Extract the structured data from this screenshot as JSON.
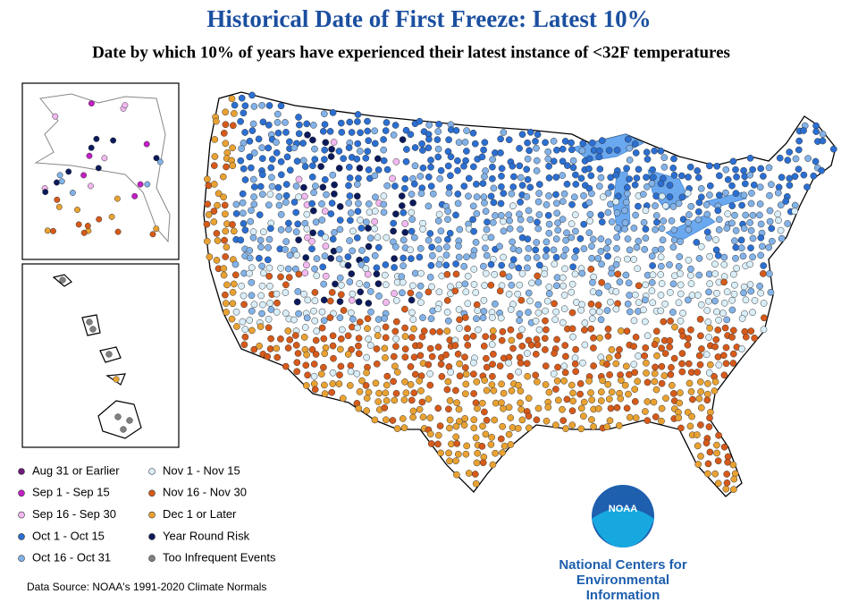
{
  "header": {
    "title": "Historical Date of First Freeze: Latest 10%",
    "subtitle": "Date by which 10% of years have experienced their latest instance of <32F temperatures"
  },
  "legend": {
    "items": [
      {
        "label": "Aug 31 or Earlier",
        "color": "#6e1a78"
      },
      {
        "label": "Sep 1 - Sep 15",
        "color": "#c21fc4"
      },
      {
        "label": "Sep 16 - Sep 30",
        "color": "#f2b8f0"
      },
      {
        "label": "Oct 1 - Oct 15",
        "color": "#2b6fd2"
      },
      {
        "label": "Oct 16 - Oct 31",
        "color": "#82b2e8"
      },
      {
        "label": "Nov 1 - Nov 15",
        "color": "#d9eef8"
      },
      {
        "label": "Nov 16 - Nov 30",
        "color": "#d65a1a"
      },
      {
        "label": "Dec 1 or Later",
        "color": "#e9a232"
      },
      {
        "label": "Year Round Risk",
        "color": "#0c1a5c"
      },
      {
        "label": "Too Infrequent Events",
        "color": "#808080"
      }
    ]
  },
  "source": "Data Source: NOAA's 1991-2020 Climate Normals",
  "logo": {
    "badge": "NOAA",
    "org": [
      "National Centers for",
      "Environmental",
      "Information"
    ]
  }
}
